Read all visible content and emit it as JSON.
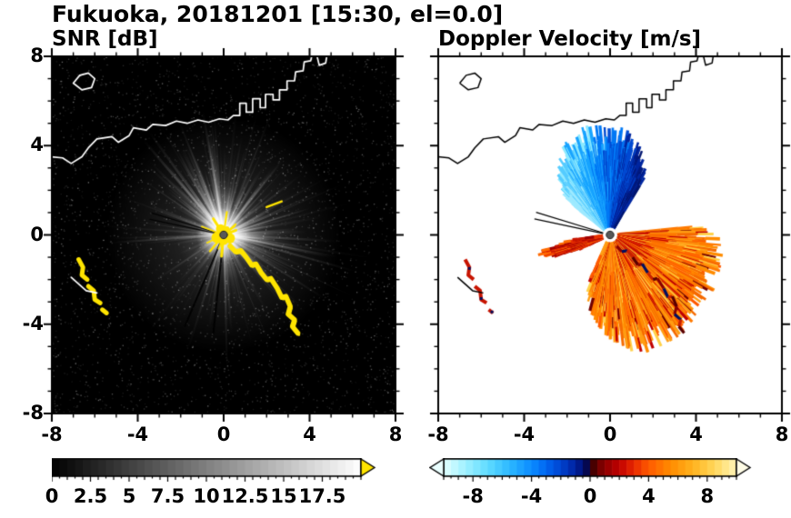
{
  "figure": {
    "title": "Fukuoka, 20181201 [15:30, el=0.0]"
  },
  "chart_data": [
    {
      "id": "snr",
      "type": "heatmap",
      "title": "SNR [dB]",
      "x_range": [
        -8,
        8
      ],
      "y_range": [
        -8,
        8
      ],
      "x_tick_values": [
        -8,
        -4,
        0,
        4,
        8
      ],
      "x_tick_labels": [
        "-8",
        "-4",
        "0",
        "4",
        "8"
      ],
      "y_tick_values": [
        8,
        4,
        0,
        -4,
        -8
      ],
      "y_tick_labels": [
        "8",
        "4",
        "0",
        "-4",
        "-8"
      ],
      "grid": false,
      "background": "#000000",
      "radar_center": [
        0,
        0
      ],
      "colorbar": {
        "range": [
          0,
          20
        ],
        "tick_values": [
          0,
          2.5,
          5,
          7.5,
          10,
          12.5,
          15,
          17.5
        ],
        "tick_labels": [
          "0",
          "2.5",
          "5",
          "7.5",
          "10",
          "12.5",
          "15",
          "17.5"
        ],
        "stops": [
          [
            0,
            "#000000"
          ],
          [
            20,
            "#ffffff"
          ]
        ],
        "over_arrow_color": "#ffe400",
        "segments": 40
      },
      "features": {
        "noise_speckle": true,
        "radial_echo_streaks": true,
        "central_glow": true,
        "saturated_core_color": "#ffe400",
        "clutter_color": "#ffe400",
        "shadow_ray_azimuths_deg": [
          186,
          203,
          282,
          287
        ]
      }
    },
    {
      "id": "velocity",
      "type": "heatmap",
      "title": "Doppler Velocity [m/s]",
      "x_range": [
        -8,
        8
      ],
      "y_range": [
        -8,
        8
      ],
      "x_tick_values": [
        -8,
        -4,
        0,
        4,
        8
      ],
      "x_tick_labels": [
        "-8",
        "-4",
        "0",
        "4",
        "8"
      ],
      "y_tick_values": [
        8,
        4,
        0,
        -4,
        -8
      ],
      "y_tick_labels": [],
      "grid": false,
      "background": "#ffffff",
      "radar_center": [
        0,
        0
      ],
      "colorbar": {
        "range": [
          -10,
          10
        ],
        "tick_values": [
          -8,
          -4,
          0,
          4,
          8
        ],
        "tick_labels": [
          "-8",
          "-4",
          "0",
          "4",
          "8"
        ],
        "stops": [
          [
            -10,
            "#e2ffff"
          ],
          [
            -8.5,
            "#9ff0ff"
          ],
          [
            -7,
            "#5fdcff"
          ],
          [
            -5.5,
            "#2cb8ff"
          ],
          [
            -4,
            "#0b8cff"
          ],
          [
            -3,
            "#0066f2"
          ],
          [
            -2,
            "#0043cf"
          ],
          [
            -1,
            "#0022a0"
          ],
          [
            -0.3,
            "#000a60"
          ],
          [
            0,
            "#200000"
          ],
          [
            0.4,
            "#600000"
          ],
          [
            1,
            "#8c0000"
          ],
          [
            2,
            "#c00000"
          ],
          [
            3,
            "#e82800"
          ],
          [
            4,
            "#ff5a00"
          ],
          [
            5.5,
            "#ff8c00"
          ],
          [
            7,
            "#ffb21e"
          ],
          [
            8.5,
            "#ffd75a"
          ],
          [
            10,
            "#fff4b8"
          ]
        ],
        "under_arrow_color": "#eaffff",
        "over_arrow_color": "#fffce6",
        "segments": 40
      },
      "toward_sector": {
        "azimuth_deg": [
          -52,
          32
        ],
        "range_profile": [
          [
            -52,
            2.4
          ],
          [
            -40,
            3.4
          ],
          [
            -28,
            4.1
          ],
          [
            -15,
            4.5
          ],
          [
            0,
            4.4
          ],
          [
            12,
            4.2
          ],
          [
            22,
            3.6
          ],
          [
            32,
            2.8
          ]
        ],
        "palette": [
          "#9feaff",
          "#55ccff",
          "#18a4ff",
          "#0078f5",
          "#004ad2",
          "#0026a0",
          "#001670"
        ]
      },
      "away_sector": {
        "azimuth_deg": [
          84,
          205
        ],
        "range_profile": [
          [
            84,
            4.2
          ],
          [
            95,
            4.7
          ],
          [
            110,
            4.8
          ],
          [
            140,
            5.0
          ],
          [
            165,
            4.9
          ],
          [
            185,
            3.9
          ],
          [
            200,
            2.8
          ],
          [
            205,
            2.2
          ]
        ],
        "palette": [
          "#ff8c00",
          "#ff7a00",
          "#ff9e14",
          "#f56a00"
        ]
      },
      "away_west_band": {
        "azimuth_deg": [
          246,
          263
        ],
        "range_profile": [
          [
            246,
            1.5
          ],
          [
            252,
            3.2
          ],
          [
            258,
            3.0
          ],
          [
            263,
            1.6
          ]
        ],
        "palette": [
          "#c81400",
          "#a00000",
          "#e83000",
          "#ff6a00"
        ]
      },
      "black_ray_azimuths_deg": [
        282,
        287
      ]
    }
  ],
  "overlays": {
    "coastline": [
      [
        [
          -8,
          3.5
        ],
        [
          -7.5,
          3.45
        ],
        [
          -7.1,
          3.2
        ],
        [
          -6.6,
          3.5
        ],
        [
          -6.3,
          3.9
        ],
        [
          -5.9,
          4.3
        ],
        [
          -5.2,
          4.4
        ],
        [
          -4.9,
          4.15
        ],
        [
          -4.4,
          4.45
        ],
        [
          -4.2,
          4.8
        ],
        [
          -3.6,
          4.7
        ],
        [
          -3.3,
          4.95
        ],
        [
          -2.7,
          4.9
        ],
        [
          -2.2,
          5.1
        ],
        [
          -1.7,
          5.0
        ],
        [
          -1.2,
          5.15
        ],
        [
          -0.7,
          5.05
        ],
        [
          -0.2,
          5.2
        ],
        [
          0.2,
          5.15
        ],
        [
          0.45,
          5.35
        ],
        [
          0.75,
          5.35
        ],
        [
          0.75,
          5.9
        ],
        [
          1.05,
          5.9
        ],
        [
          1.05,
          5.5
        ],
        [
          1.35,
          5.5
        ],
        [
          1.35,
          6.1
        ],
        [
          1.7,
          6.1
        ],
        [
          1.7,
          5.7
        ],
        [
          1.95,
          5.7
        ],
        [
          1.95,
          6.3
        ],
        [
          2.3,
          6.3
        ],
        [
          2.3,
          6.05
        ],
        [
          2.6,
          6.05
        ],
        [
          2.6,
          6.5
        ],
        [
          2.95,
          6.5
        ],
        [
          2.95,
          6.9
        ],
        [
          3.3,
          6.9
        ],
        [
          3.35,
          7.3
        ],
        [
          3.7,
          7.35
        ],
        [
          3.75,
          7.75
        ],
        [
          4.05,
          7.8
        ],
        [
          4.1,
          8.0
        ]
      ],
      [
        [
          4.35,
          8.0
        ],
        [
          4.45,
          7.6
        ],
        [
          4.75,
          7.7
        ],
        [
          4.8,
          8.0
        ]
      ],
      [
        [
          -7.0,
          6.8
        ],
        [
          -6.7,
          7.15
        ],
        [
          -6.3,
          7.25
        ],
        [
          -6.0,
          7.0
        ],
        [
          -6.15,
          6.6
        ],
        [
          -6.6,
          6.5
        ],
        [
          -7.0,
          6.8
        ]
      ],
      [
        [
          -7.1,
          -1.9
        ],
        [
          -6.4,
          -2.5
        ],
        [
          -5.9,
          -2.6
        ]
      ]
    ],
    "sw_islets": [
      [
        [
          -6.75,
          -1.1
        ],
        [
          -6.55,
          -1.45
        ],
        [
          -6.6,
          -1.8
        ],
        [
          -6.35,
          -2.0
        ]
      ],
      [
        [
          -6.3,
          -2.3
        ],
        [
          -6.05,
          -2.5
        ],
        [
          -6.0,
          -2.9
        ],
        [
          -5.75,
          -3.05
        ]
      ],
      [
        [
          -5.65,
          -3.35
        ],
        [
          -5.45,
          -3.5
        ]
      ]
    ],
    "se_clutter_chain": [
      [
        [
          0.3,
          -0.5
        ],
        [
          0.55,
          -0.75
        ],
        [
          0.8,
          -0.7
        ],
        [
          1.05,
          -1.0
        ],
        [
          1.3,
          -1.35
        ],
        [
          1.5,
          -1.3
        ],
        [
          1.75,
          -1.7
        ],
        [
          2.0,
          -2.0
        ],
        [
          2.2,
          -1.95
        ],
        [
          2.5,
          -2.4
        ],
        [
          2.7,
          -2.8
        ],
        [
          2.9,
          -2.75
        ],
        [
          3.1,
          -3.2
        ],
        [
          3.0,
          -3.55
        ],
        [
          3.3,
          -3.8
        ],
        [
          3.2,
          -4.1
        ],
        [
          3.45,
          -4.4
        ]
      ]
    ],
    "ne_streak": [
      [
        2.0,
        1.25
      ],
      [
        2.7,
        1.5
      ]
    ]
  }
}
